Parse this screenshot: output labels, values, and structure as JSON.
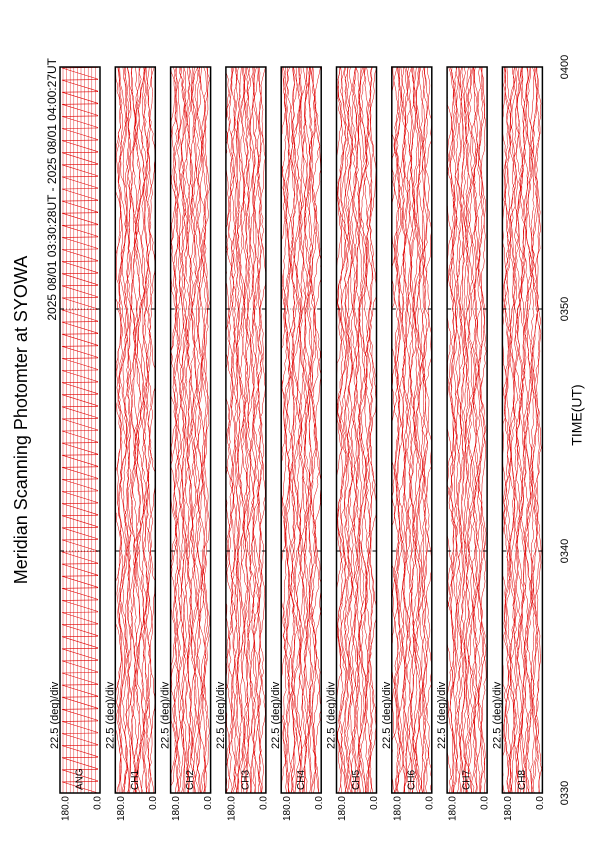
{
  "chart_data": {
    "type": "multi-panel-line",
    "title": "Meridian Scanning Photomter at SYOWA",
    "subtitle": "2025 08/01 03:30:28UT - 2025 08/01 04:00:27UT",
    "xlabel": "TIME(UT)",
    "xlim": [
      210,
      240
    ],
    "xticks": [
      {
        "value": 210,
        "label": "0330"
      },
      {
        "value": 220,
        "label": "0340"
      },
      {
        "value": 230,
        "label": "0350"
      },
      {
        "value": 240,
        "label": "0400"
      }
    ],
    "color": "#e00000",
    "panels": [
      {
        "name": "ANG",
        "scale": "22.5 (deg)/div",
        "ylim": [
          0,
          180
        ],
        "yticks": [
          {
            "value": 180,
            "label": "180.0"
          },
          {
            "value": 0,
            "label": "0.0"
          }
        ]
      },
      {
        "name": "CH1",
        "scale": "22.5 (deg)/div",
        "ylim": [
          0,
          180
        ],
        "yticks": [
          {
            "value": 180,
            "label": "180.0"
          },
          {
            "value": 0,
            "label": "0.0"
          }
        ]
      },
      {
        "name": "CH2",
        "scale": "22.5 (deg)/div",
        "ylim": [
          0,
          180
        ],
        "yticks": [
          {
            "value": 180,
            "label": "180.0"
          },
          {
            "value": 0,
            "label": "0.0"
          }
        ]
      },
      {
        "name": "CH3",
        "scale": "22.5 (deg)/div",
        "ylim": [
          0,
          180
        ],
        "yticks": [
          {
            "value": 180,
            "label": "180.0"
          },
          {
            "value": 0,
            "label": "0.0"
          }
        ]
      },
      {
        "name": "CH4",
        "scale": "22.5 (deg)/div",
        "ylim": [
          0,
          180
        ],
        "yticks": [
          {
            "value": 180,
            "label": "180.0"
          },
          {
            "value": 0,
            "label": "0.0"
          }
        ]
      },
      {
        "name": "CH5",
        "scale": "22.5 (deg)/div",
        "ylim": [
          0,
          180
        ],
        "yticks": [
          {
            "value": 180,
            "label": "180.0"
          },
          {
            "value": 0,
            "label": "0.0"
          }
        ]
      },
      {
        "name": "CH6",
        "scale": "22.5 (deg)/div",
        "ylim": [
          0,
          180
        ],
        "yticks": [
          {
            "value": 180,
            "label": "180.0"
          },
          {
            "value": 0,
            "label": "0.0"
          }
        ]
      },
      {
        "name": "CH7",
        "scale": "22.5 (deg)/div",
        "ylim": [
          0,
          180
        ],
        "yticks": [
          {
            "value": 180,
            "label": "180.0"
          },
          {
            "value": 0,
            "label": "0.0"
          }
        ]
      },
      {
        "name": "CH8",
        "scale": "22.5 (deg)/div",
        "ylim": [
          0,
          180
        ],
        "yticks": [
          {
            "value": 180,
            "label": "180.0"
          },
          {
            "value": 0,
            "label": "0.0"
          }
        ]
      }
    ]
  }
}
